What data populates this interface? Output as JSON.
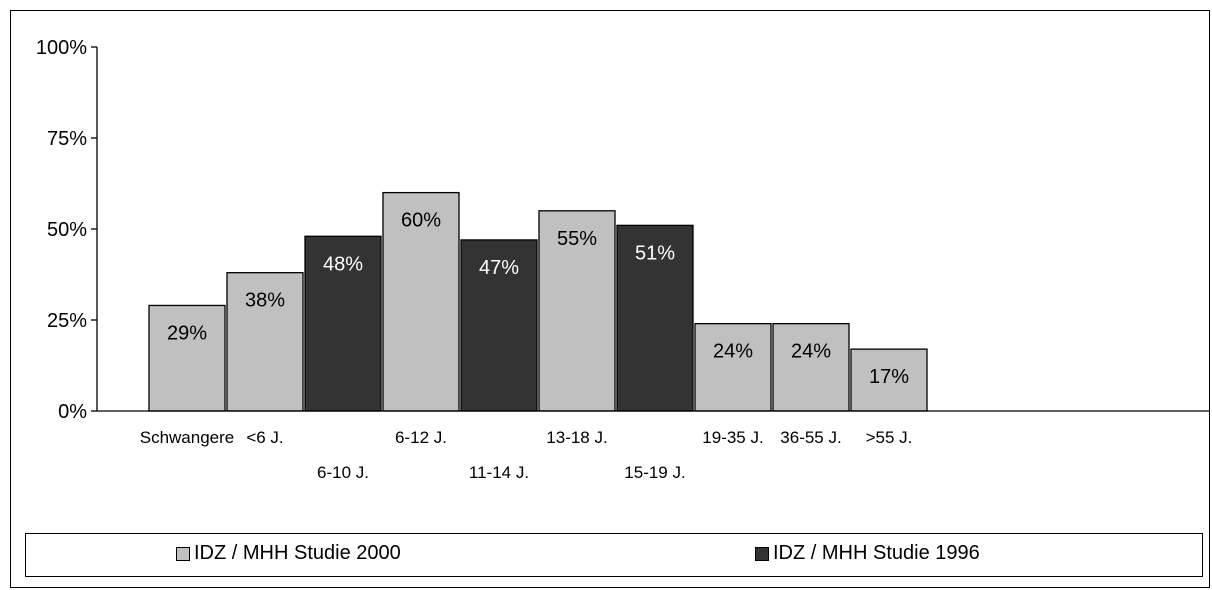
{
  "chart_data": {
    "type": "bar",
    "categories": [
      "Schwangere",
      "<6 J.",
      "6-10 J.",
      "6-12 J.",
      "11-14 J.",
      "13-18 J.",
      "15-19 J.",
      "19-35 J.",
      "36-55 J.",
      ">55 J."
    ],
    "series": [
      {
        "name": "IDZ / MHH Studie 2000",
        "color": "#c0c0c0",
        "values": [
          29,
          38,
          null,
          60,
          null,
          55,
          null,
          24,
          24,
          17
        ],
        "labels": [
          "29%",
          "38%",
          null,
          "60%",
          null,
          "55%",
          null,
          "24%",
          "24%",
          "17%"
        ]
      },
      {
        "name": "IDZ / MHH Studie 1996",
        "color": "#333333",
        "values": [
          null,
          null,
          48,
          null,
          47,
          null,
          51,
          null,
          null,
          null
        ],
        "labels": [
          null,
          null,
          "48%",
          null,
          "47%",
          null,
          "51%",
          null,
          null,
          null
        ]
      }
    ],
    "yticks": [
      "0%",
      "25%",
      "50%",
      "75%",
      "100%"
    ],
    "ylim": [
      0,
      100
    ],
    "legend_position": "bottom"
  }
}
